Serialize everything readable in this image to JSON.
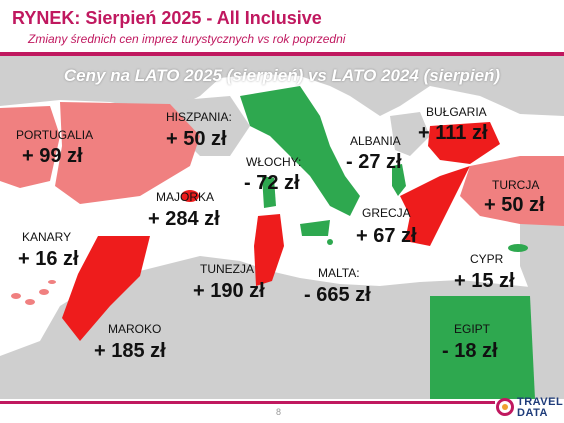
{
  "header": {
    "title": "RYNEK: Sierpień 2025 - All Inclusive",
    "subtitle": "Zmiany średnich cen imprez turystycznych vs rok poprzedni"
  },
  "map": {
    "subtitle": "Ceny na LATO 2025 (sierpień) vs  LATO 2024 (sierpień)"
  },
  "countries": {
    "portugalia": {
      "name": "PORTUGALIA",
      "value": "+ 99 zł"
    },
    "hiszpania": {
      "name": "HISZPANIA:",
      "value": "+ 50 zł"
    },
    "wlochy": {
      "name": "WŁOCHY:",
      "value": "- 72 zł"
    },
    "albania": {
      "name": "ALBANIA",
      "value": "- 27 zł"
    },
    "bulgaria": {
      "name": "BUŁGARIA",
      "value": "+ 111 zł"
    },
    "turcja": {
      "name": "TURCJA",
      "value": "+ 50 zł"
    },
    "majorka": {
      "name": "MAJORKA",
      "value": "+ 284 zł"
    },
    "grecja": {
      "name": "GRECJA",
      "value": "+ 67 zł"
    },
    "kanary": {
      "name": "KANARY",
      "value": "+ 16 zł"
    },
    "tunezja": {
      "name": "TUNEZJA",
      "value": "+ 190 zł"
    },
    "malta": {
      "name": "MALTA:",
      "value": "- 665 zł"
    },
    "cypr": {
      "name": "CYPR",
      "value": "+ 15 zł"
    },
    "maroko": {
      "name": "MAROKO",
      "value": "+ 185 zł"
    },
    "egipt": {
      "name": "EGIPT",
      "value": "- 18 zł"
    }
  },
  "colors": {
    "accent": "#c0185f",
    "increase_strong": "#ee1c1c",
    "increase_light": "#f08080",
    "decrease": "#2ea84f",
    "land": "#cfcfcf",
    "water": "#ffffff"
  },
  "footer": {
    "page_number": "8"
  },
  "logo": {
    "line1": "TRAVEL",
    "line2": "DATA"
  }
}
